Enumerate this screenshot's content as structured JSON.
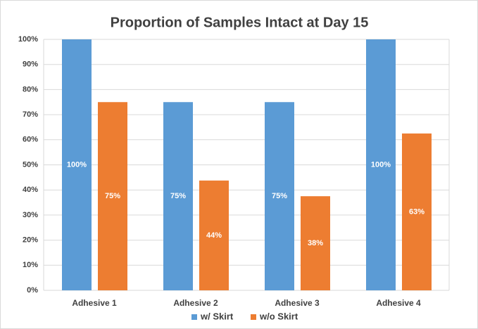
{
  "chart_data": {
    "type": "bar",
    "title": "Proportion of Samples Intact at Day 15",
    "categories": [
      "Adhesive 1",
      "Adhesive 2",
      "Adhesive 3",
      "Adhesive 4"
    ],
    "series": [
      {
        "name": "w/ Skirt",
        "color": "#5b9bd5",
        "values": [
          100,
          75,
          75,
          100
        ],
        "value_labels": [
          "100%",
          "75%",
          "75%",
          "100%"
        ]
      },
      {
        "name": "w/o Skirt",
        "color": "#ed7d31",
        "values": [
          75,
          43.75,
          37.5,
          62.5
        ],
        "value_labels": [
          "75%",
          "44%",
          "38%",
          "63%"
        ]
      }
    ],
    "ylim": [
      0,
      100
    ],
    "yticks": [
      {
        "value": 0,
        "label": "0%"
      },
      {
        "value": 10,
        "label": "10%"
      },
      {
        "value": 20,
        "label": "20%"
      },
      {
        "value": 30,
        "label": "30%"
      },
      {
        "value": 40,
        "label": "40%"
      },
      {
        "value": 50,
        "label": "50%"
      },
      {
        "value": 60,
        "label": "60%"
      },
      {
        "value": 70,
        "label": "70%"
      },
      {
        "value": 80,
        "label": "80%"
      },
      {
        "value": 90,
        "label": "90%"
      },
      {
        "value": 100,
        "label": "100%"
      }
    ],
    "grid": true,
    "legend": "bottom"
  }
}
